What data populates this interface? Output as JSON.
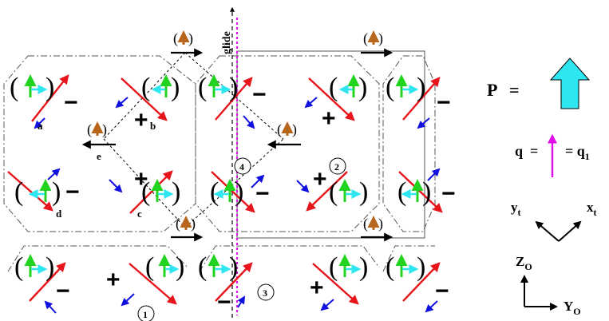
{
  "colors": {
    "red": "#e8141b",
    "green": "#22d41f",
    "cyan": "#2ee6f0",
    "blue": "#1010e0",
    "orange": "#b8651c",
    "magenta": "#e010e8",
    "black": "#000000",
    "grey": "#555555"
  },
  "labels": {
    "glide": "glide",
    "site_a": "a",
    "site_b": "b",
    "site_c": "c",
    "site_d": "d",
    "site_e": "e",
    "n1": "1",
    "n2": "2",
    "n3": "3",
    "n4": "4",
    "plus": "+",
    "minus": "−",
    "paren_open": "(",
    "paren_close": ")"
  },
  "legend": {
    "p_label": "P",
    "p_equals": "=",
    "q_label": "q",
    "q_equals": "=",
    "q_rhs_base": "= q",
    "q_rhs_sub": "1",
    "yt_base": "y",
    "yt_sub": "t",
    "xt_base": "x",
    "xt_sub": "t",
    "zo_base": "Z",
    "zo_sub": "O",
    "yo_base": "Y",
    "yo_sub": "O"
  }
}
